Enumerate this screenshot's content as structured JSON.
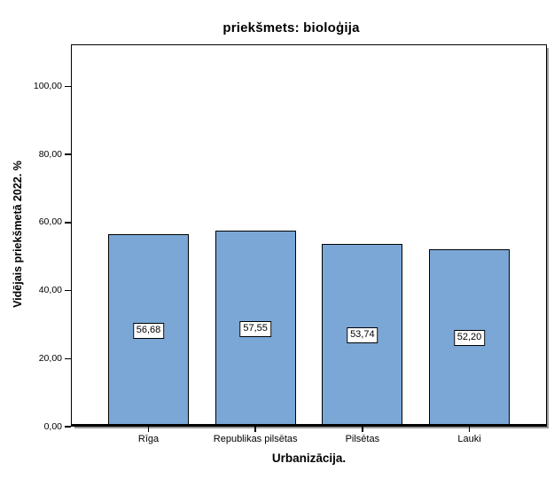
{
  "chart_data": {
    "type": "bar",
    "title": "priekšmets: bioloģija",
    "xlabel": "Urbanizācija.",
    "ylabel": "Vidējais priekšmetā 2022. %",
    "categories": [
      "Rīga",
      "Republikas pilsētas",
      "Pilsētas",
      "Lauki"
    ],
    "values": [
      56.68,
      57.55,
      53.74,
      52.2
    ],
    "value_labels": [
      "56,68",
      "57,55",
      "53,74",
      "52,20"
    ],
    "yticks": {
      "labels": [
        "0,00",
        "20,00",
        "40,00",
        "60,00",
        "80,00",
        "100,00"
      ],
      "values": [
        0,
        20,
        40,
        60,
        80,
        100
      ]
    },
    "ylim": [
      0,
      112.4
    ],
    "grid": false,
    "legend": false,
    "colors": {
      "bar_fill": "#7AA7D6",
      "bar_border": "#000000",
      "frame_border": "#000000",
      "frame_shadow": "#999999",
      "value_box_bg": "#FFFFFF",
      "text": "#000000"
    }
  }
}
